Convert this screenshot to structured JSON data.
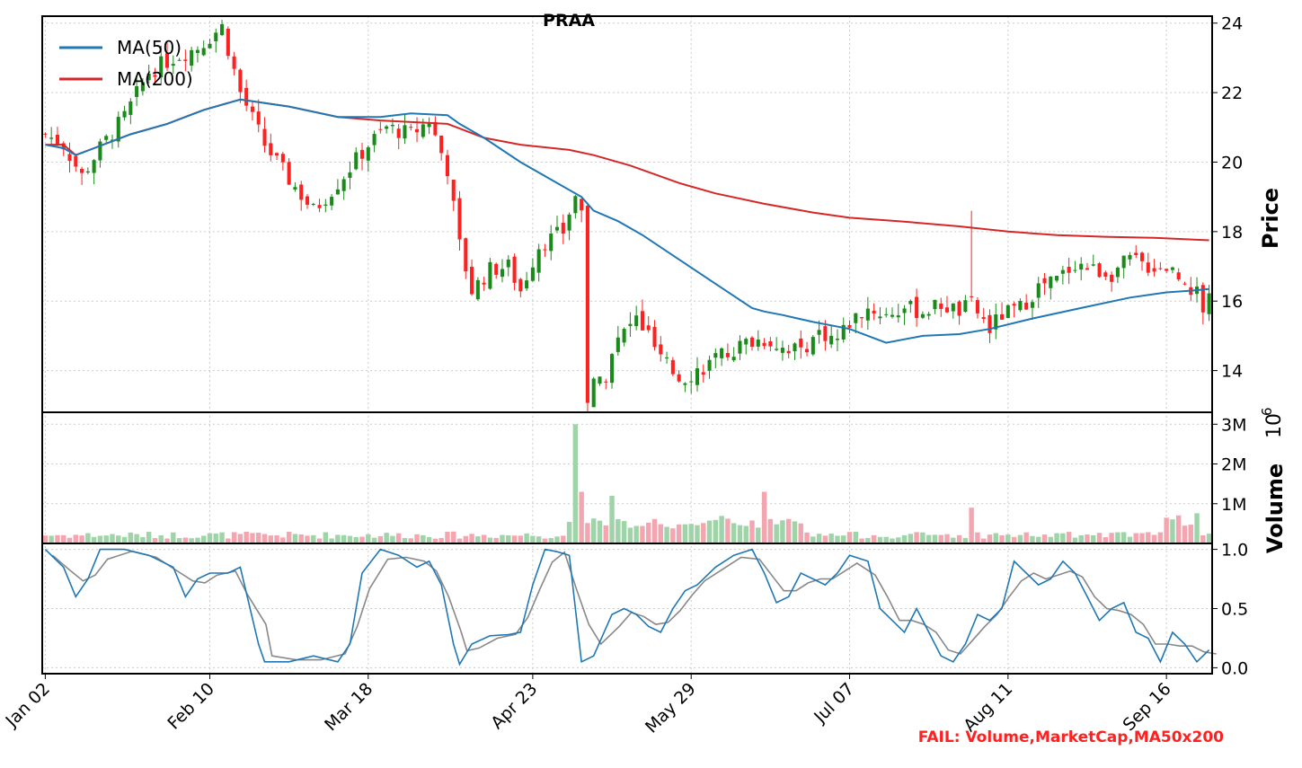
{
  "chart_data": {
    "type": "candlestick",
    "title": "PRAA",
    "ylabel": "Price",
    "volume_label": "Volume",
    "volume_exponent": "10",
    "volume_exponent_power": "6",
    "fail_note": "FAIL: Volume,MarketCap,MA50x200",
    "ylim_price": [
      12.8,
      24.2
    ],
    "ylim_volume": [
      0,
      3.3
    ],
    "ylim_stoch": [
      -0.05,
      1.05
    ],
    "price_ticks": [
      "14",
      "16",
      "18",
      "20",
      "22",
      "24"
    ],
    "volume_ticks": [
      "1M",
      "2M",
      "3M"
    ],
    "stoch_ticks": [
      "0.0",
      "0.5",
      "1.0"
    ],
    "x_ticks": [
      {
        "i": 0,
        "label": "Jan 02"
      },
      {
        "i": 27,
        "label": "Feb 10"
      },
      {
        "i": 53,
        "label": "Mar 18"
      },
      {
        "i": 80,
        "label": "Apr 23"
      },
      {
        "i": 106,
        "label": "May 29"
      },
      {
        "i": 132,
        "label": "Jul 07"
      },
      {
        "i": 158,
        "label": "Aug 11"
      },
      {
        "i": 184,
        "label": "Sep 16"
      }
    ],
    "legend": [
      {
        "name": "MA(50)",
        "color": "#1f77b4"
      },
      {
        "name": "MA(200)",
        "color": "#d62728"
      }
    ],
    "colors": {
      "up": "#1a8a1a",
      "down": "#ff2020",
      "vol_up": "#9fd3a8",
      "vol_down": "#f4a6b0",
      "stoch_k": "#1f77b4",
      "stoch_d": "#888888"
    },
    "n_bars": 192,
    "close_points": [
      [
        0,
        20.8
      ],
      [
        3,
        20.5
      ],
      [
        6,
        19.6
      ],
      [
        9,
        20.4
      ],
      [
        13,
        21.3
      ],
      [
        17,
        22.6
      ],
      [
        21,
        23.0
      ],
      [
        25,
        23.3
      ],
      [
        29,
        23.9
      ],
      [
        32,
        22.0
      ],
      [
        36,
        20.5
      ],
      [
        40,
        19.5
      ],
      [
        44,
        18.6
      ],
      [
        48,
        19.4
      ],
      [
        53,
        20.5
      ],
      [
        56,
        21.0
      ],
      [
        60,
        20.8
      ],
      [
        63,
        21.2
      ],
      [
        66,
        19.8
      ],
      [
        68,
        17.6
      ],
      [
        70,
        16.3
      ],
      [
        73,
        16.9
      ],
      [
        76,
        17.0
      ],
      [
        78,
        16.3
      ],
      [
        81,
        17.6
      ],
      [
        85,
        18.0
      ],
      [
        87,
        19.1
      ],
      [
        88,
        18.6
      ],
      [
        89,
        13.2
      ],
      [
        90,
        13.6
      ],
      [
        92,
        13.9
      ],
      [
        93,
        14.6
      ],
      [
        95,
        15.1
      ],
      [
        97,
        15.5
      ],
      [
        99,
        15.0
      ],
      [
        101,
        14.3
      ],
      [
        104,
        13.8
      ],
      [
        106,
        13.9
      ],
      [
        109,
        14.2
      ],
      [
        112,
        14.5
      ],
      [
        115,
        14.8
      ],
      [
        118,
        14.9
      ],
      [
        121,
        14.7
      ],
      [
        124,
        14.6
      ],
      [
        127,
        15.1
      ],
      [
        130,
        14.9
      ],
      [
        132,
        15.4
      ],
      [
        135,
        15.8
      ],
      [
        138,
        15.6
      ],
      [
        141,
        15.8
      ],
      [
        144,
        15.7
      ],
      [
        147,
        15.9
      ],
      [
        150,
        15.7
      ],
      [
        152,
        15.9
      ],
      [
        155,
        15.2
      ],
      [
        157,
        15.6
      ],
      [
        160,
        15.8
      ],
      [
        163,
        16.4
      ],
      [
        166,
        16.6
      ],
      [
        169,
        17.1
      ],
      [
        172,
        16.9
      ],
      [
        175,
        16.8
      ],
      [
        178,
        17.2
      ],
      [
        181,
        17.0
      ],
      [
        184,
        17.0
      ],
      [
        187,
        16.6
      ],
      [
        189,
        16.2
      ],
      [
        190,
        15.8
      ],
      [
        191,
        16.0
      ]
    ],
    "spikes": [
      {
        "i": 152,
        "high": 18.6
      }
    ],
    "vol_spikes": [
      {
        "i": 87,
        "v": 3.0
      },
      {
        "i": 88,
        "v": 1.3
      },
      {
        "i": 93,
        "v": 1.2
      },
      {
        "i": 118,
        "v": 1.3
      },
      {
        "i": 152,
        "v": 0.9
      }
    ],
    "ma50_points": [
      [
        0,
        20.5
      ],
      [
        3,
        20.4
      ],
      [
        5,
        20.2
      ],
      [
        8,
        20.4
      ],
      [
        14,
        20.8
      ],
      [
        20,
        21.1
      ],
      [
        26,
        21.5
      ],
      [
        32,
        21.8
      ],
      [
        40,
        21.6
      ],
      [
        48,
        21.3
      ],
      [
        55,
        21.3
      ],
      [
        60,
        21.4
      ],
      [
        66,
        21.35
      ],
      [
        68,
        21.1
      ],
      [
        72,
        20.7
      ],
      [
        78,
        20.0
      ],
      [
        84,
        19.4
      ],
      [
        88,
        19.0
      ],
      [
        90,
        18.6
      ],
      [
        94,
        18.3
      ],
      [
        98,
        17.9
      ],
      [
        104,
        17.2
      ],
      [
        110,
        16.5
      ],
      [
        116,
        15.8
      ],
      [
        118,
        15.7
      ],
      [
        121,
        15.6
      ],
      [
        126,
        15.4
      ],
      [
        132,
        15.2
      ],
      [
        138,
        14.8
      ],
      [
        144,
        15.0
      ],
      [
        150,
        15.05
      ],
      [
        155,
        15.2
      ],
      [
        162,
        15.5
      ],
      [
        170,
        15.8
      ],
      [
        178,
        16.1
      ],
      [
        184,
        16.25
      ],
      [
        188,
        16.3
      ],
      [
        191,
        16.35
      ]
    ],
    "ma200_points": [
      [
        0,
        20.5
      ],
      [
        3,
        20.5
      ],
      [
        5,
        20.2
      ],
      [
        8,
        20.4
      ],
      [
        14,
        20.8
      ],
      [
        20,
        21.1
      ],
      [
        26,
        21.5
      ],
      [
        32,
        21.8
      ],
      [
        40,
        21.6
      ],
      [
        48,
        21.3
      ],
      [
        55,
        21.2
      ],
      [
        66,
        21.1
      ],
      [
        72,
        20.7
      ],
      [
        78,
        20.5
      ],
      [
        86,
        20.35
      ],
      [
        90,
        20.2
      ],
      [
        96,
        19.9
      ],
      [
        104,
        19.4
      ],
      [
        110,
        19.1
      ],
      [
        118,
        18.8
      ],
      [
        126,
        18.55
      ],
      [
        132,
        18.4
      ],
      [
        140,
        18.3
      ],
      [
        150,
        18.15
      ],
      [
        158,
        18.0
      ],
      [
        166,
        17.9
      ],
      [
        174,
        17.85
      ],
      [
        182,
        17.82
      ],
      [
        191,
        17.75
      ]
    ],
    "stoch_k_points": [
      [
        0,
        1.0
      ],
      [
        3,
        0.85
      ],
      [
        5,
        0.6
      ],
      [
        7,
        0.75
      ],
      [
        9,
        1.0
      ],
      [
        13,
        1.0
      ],
      [
        17,
        0.95
      ],
      [
        21,
        0.85
      ],
      [
        23,
        0.6
      ],
      [
        25,
        0.75
      ],
      [
        27,
        0.8
      ],
      [
        30,
        0.8
      ],
      [
        32,
        0.85
      ],
      [
        35,
        0.2
      ],
      [
        36,
        0.05
      ],
      [
        40,
        0.05
      ],
      [
        44,
        0.1
      ],
      [
        48,
        0.05
      ],
      [
        50,
        0.2
      ],
      [
        52,
        0.8
      ],
      [
        55,
        1.0
      ],
      [
        58,
        0.95
      ],
      [
        61,
        0.85
      ],
      [
        63,
        0.9
      ],
      [
        65,
        0.7
      ],
      [
        67,
        0.2
      ],
      [
        68,
        0.03
      ],
      [
        70,
        0.2
      ],
      [
        73,
        0.27
      ],
      [
        76,
        0.28
      ],
      [
        78,
        0.3
      ],
      [
        80,
        0.7
      ],
      [
        82,
        1.0
      ],
      [
        84,
        0.98
      ],
      [
        86,
        0.95
      ],
      [
        88,
        0.05
      ],
      [
        90,
        0.1
      ],
      [
        93,
        0.45
      ],
      [
        95,
        0.5
      ],
      [
        97,
        0.45
      ],
      [
        99,
        0.35
      ],
      [
        101,
        0.3
      ],
      [
        103,
        0.5
      ],
      [
        105,
        0.65
      ],
      [
        107,
        0.7
      ],
      [
        110,
        0.85
      ],
      [
        113,
        0.95
      ],
      [
        116,
        1.0
      ],
      [
        118,
        0.8
      ],
      [
        120,
        0.55
      ],
      [
        122,
        0.6
      ],
      [
        124,
        0.8
      ],
      [
        126,
        0.75
      ],
      [
        128,
        0.7
      ],
      [
        130,
        0.8
      ],
      [
        132,
        0.95
      ],
      [
        135,
        0.9
      ],
      [
        137,
        0.5
      ],
      [
        139,
        0.4
      ],
      [
        141,
        0.3
      ],
      [
        143,
        0.5
      ],
      [
        145,
        0.3
      ],
      [
        147,
        0.1
      ],
      [
        149,
        0.05
      ],
      [
        151,
        0.2
      ],
      [
        153,
        0.45
      ],
      [
        155,
        0.4
      ],
      [
        157,
        0.5
      ],
      [
        159,
        0.9
      ],
      [
        161,
        0.8
      ],
      [
        163,
        0.7
      ],
      [
        165,
        0.75
      ],
      [
        167,
        0.9
      ],
      [
        169,
        0.8
      ],
      [
        171,
        0.6
      ],
      [
        173,
        0.4
      ],
      [
        175,
        0.5
      ],
      [
        177,
        0.55
      ],
      [
        179,
        0.3
      ],
      [
        181,
        0.25
      ],
      [
        183,
        0.05
      ],
      [
        185,
        0.3
      ],
      [
        187,
        0.2
      ],
      [
        189,
        0.05
      ],
      [
        191,
        0.15
      ]
    ]
  }
}
